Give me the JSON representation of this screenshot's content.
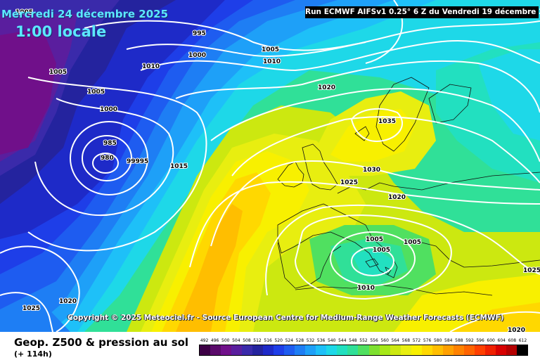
{
  "header": {
    "date": "Mercredi 24 décembre 2025",
    "time": "1:00 locale",
    "run_info": "Run ECMWF AIFSv1 0.25° 6 Z du Vendredi 19 décembre 2025"
  },
  "map": {
    "isobar_labels": [
      "1005",
      "995",
      "1000",
      "1010",
      "1005",
      "1010",
      "1005",
      "1005",
      "1000",
      "1020",
      "985",
      "980",
      "99995",
      "1015",
      "1035",
      "1030",
      "1025",
      "1020",
      "1005",
      "1005",
      "1005",
      "1025",
      "1010",
      "1020",
      "1025",
      "1020"
    ],
    "low_pressure_centres": [
      "980",
      "1005"
    ],
    "copyright": "Copyright © 2025 Meteociel.fr - Source European Centre for Medium-Range Weather Forecasts (ECMWF)"
  },
  "footer": {
    "title": "Geop. Z500 & pression au sol",
    "subtitle": "(+ 114h)"
  },
  "legend": {
    "ticks": [
      "492",
      "496",
      "500",
      "504",
      "508",
      "512",
      "516",
      "520",
      "524",
      "528",
      "532",
      "536",
      "540",
      "544",
      "548",
      "552",
      "556",
      "560",
      "564",
      "568",
      "572",
      "576",
      "580",
      "584",
      "588",
      "592",
      "596",
      "600",
      "604",
      "608",
      "612"
    ],
    "colors": [
      "#3d0045",
      "#5a0a6a",
      "#70108a",
      "#5a1e9e",
      "#3a2aaa",
      "#24239e",
      "#1e2ac8",
      "#1e3ee8",
      "#1e5cf0",
      "#1e7ef4",
      "#1ea0f8",
      "#1ec0f8",
      "#1ed8e8",
      "#22e0c0",
      "#30e098",
      "#50e060",
      "#7ee030",
      "#a6e818",
      "#cce810",
      "#e8ee10",
      "#f8f000",
      "#ffd800",
      "#ffbe00",
      "#ffa000",
      "#ff8200",
      "#ff6400",
      "#ff4000",
      "#f02000",
      "#d80000",
      "#b40000",
      "#000000"
    ]
  }
}
